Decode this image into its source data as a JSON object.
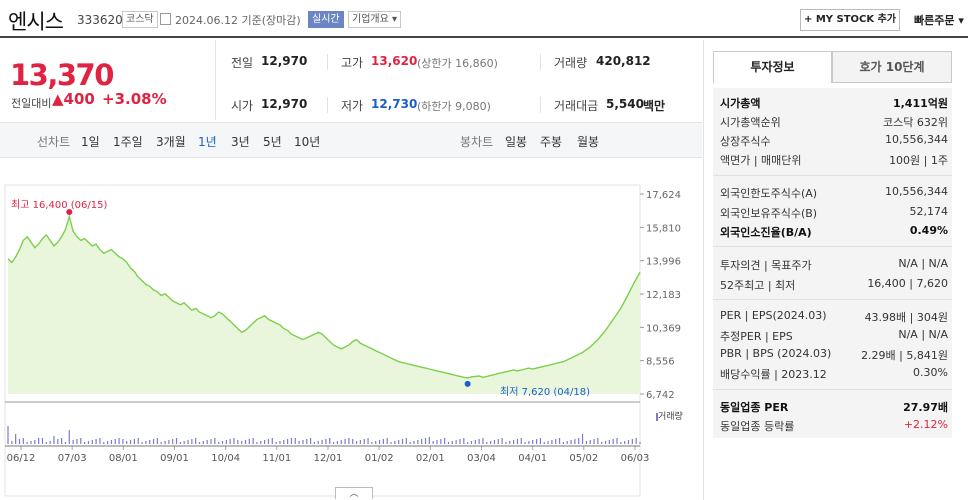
{
  "header": {
    "company": "엔시스",
    "code": "333620",
    "market": "코스닥",
    "date": "2024.06.12  기준(장마감)",
    "realtime": "실시간",
    "company_info": "기업개요",
    "mystock_button": "+ MY STOCK 추가",
    "quick_order": "빠른주문"
  },
  "price": {
    "current": "13,370",
    "change_label": "전일대비",
    "change_amount": "▲400",
    "change_pct": "+3.08%"
  },
  "stats": {
    "prev_label": "전일",
    "prev_value": "12,970",
    "high_label": "고가",
    "high_value": "13,620",
    "upper_limit": "(상한가 16,860)",
    "volume_label": "거래량",
    "volume_value": "420,812",
    "open_label": "시가",
    "open_value": "12,970",
    "low_label": "저가",
    "low_value": "12,730",
    "lower_limit": "(하한가 9,080)",
    "amount_label": "거래대금",
    "amount_value": "5,540",
    "amount_unit": "백만"
  },
  "periods": {
    "line_label": "선차트",
    "line_items": [
      "1일",
      "1주일",
      "3개월",
      "1년",
      "3년",
      "5년",
      "10년"
    ],
    "selected": "1년",
    "candle_label": "봉차트",
    "candle_items": [
      "일봉",
      "주봉",
      "월봉"
    ]
  },
  "chart_data": {
    "type": "area",
    "x_tick_labels": [
      "06/12",
      "07/03",
      "08/01",
      "09/01",
      "10/04",
      "11/01",
      "12/01",
      "01/02",
      "02/01",
      "03/04",
      "04/01",
      "05/02",
      "06/03"
    ],
    "y_ticks": [
      "17,624",
      "15,810",
      "13,996",
      "12,183",
      "10,369",
      "8,556",
      "6,742"
    ],
    "ylim": [
      6742,
      17624
    ],
    "high_label": "최고 16,400 (06/15)",
    "low_label": "최저 7,620 (04/18)",
    "volume_label": "거래량",
    "x_start": "2023-06-12",
    "x_end": "2024-06-12",
    "series": [
      {
        "values": [
          14100,
          13900,
          14200,
          14600,
          15100,
          15300,
          15000,
          14700,
          14900,
          15200,
          15400,
          15100,
          14800,
          15000,
          15300,
          15700,
          16400,
          15600,
          15300,
          15100,
          15200,
          15000,
          14800,
          14900,
          14600,
          14400,
          14500,
          14600,
          14400,
          14200,
          14100,
          13900,
          13600,
          13400,
          13100,
          12900,
          12700,
          12600,
          12400,
          12300,
          12100,
          12200,
          12000,
          11800,
          11700,
          11600,
          11700,
          11500,
          11300,
          11400,
          11200,
          11100,
          11000,
          10900,
          11000,
          11200,
          11100,
          10900,
          10700,
          10500,
          10300,
          10100,
          10200,
          10400,
          10600,
          10800,
          10900,
          11000,
          10800,
          10700,
          10600,
          10500,
          10300,
          10200,
          10000,
          9900,
          9800,
          9700,
          9800,
          9900,
          10000,
          10100,
          10000,
          9800,
          9600,
          9400,
          9300,
          9200,
          9300,
          9400,
          9600,
          9700,
          9500,
          9400,
          9300,
          9200,
          9100,
          9000,
          8900,
          8800,
          8700,
          8600,
          8500,
          8450,
          8400,
          8350,
          8300,
          8250,
          8200,
          8150,
          8100,
          8050,
          8000,
          7950,
          7900,
          7850,
          7800,
          7750,
          7700,
          7650,
          7620,
          7680,
          7700,
          7720,
          7650,
          7700,
          7750,
          7800,
          7850,
          7900,
          7950,
          8000,
          8050,
          8000,
          8050,
          8100,
          8150,
          8100,
          8150,
          8200,
          8250,
          8300,
          8350,
          8400,
          8450,
          8500,
          8600,
          8700,
          8800,
          8900,
          9000,
          9150,
          9300,
          9500,
          9700,
          9950,
          10200,
          10500,
          10800,
          11100,
          11400,
          11800,
          12200,
          12600,
          13000,
          13370
        ]
      }
    ]
  },
  "right_panel": {
    "tab_invest": "투자정보",
    "tab_orderbook": "호가 10단계",
    "market_cap_label": "시가총액",
    "market_cap_value": "1,411억원",
    "market_cap_rank_label": "시가총액순위",
    "market_cap_rank_value": "코스닥 632위",
    "shares_label": "상장주식수",
    "shares_value": "10,556,344",
    "par_label": "액면가 | 매매단위",
    "par_value": "100원 | 1주",
    "foreign_limit_label": "외국인한도주식수(A)",
    "foreign_limit_value": "10,556,344",
    "foreign_hold_label": "외국인보유주식수(B)",
    "foreign_hold_value": "52,174",
    "foreign_ratio_label": "외국인소진율(B/A)",
    "foreign_ratio_value": "0.49%",
    "opinion_label": "투자의견 | 목표주가",
    "opinion_value": "N/A | N/A",
    "week52_label": "52주최고 | 최저",
    "week52_value": "16,400 | 7,620",
    "per_label": "PER | EPS(2024.03)",
    "per_value": "43.98배 | 304원",
    "est_per_label": "추정PER | EPS",
    "est_per_value": "N/A | N/A",
    "pbr_label": "PBR | BPS (2024.03)",
    "pbr_value": "2.29배 | 5,841원",
    "div_label": "배당수익률 | 2023.12",
    "div_value": "0.30%",
    "sector_per_label": "동일업종 PER",
    "sector_per_value": "27.97배",
    "sector_chg_label": "동일업종 등락률",
    "sector_chg_value": "+2.12%"
  },
  "colors": {
    "up": "#e12343",
    "down": "#1b5fc7",
    "area": "#e9f6dc",
    "line": "#7bd04a"
  }
}
